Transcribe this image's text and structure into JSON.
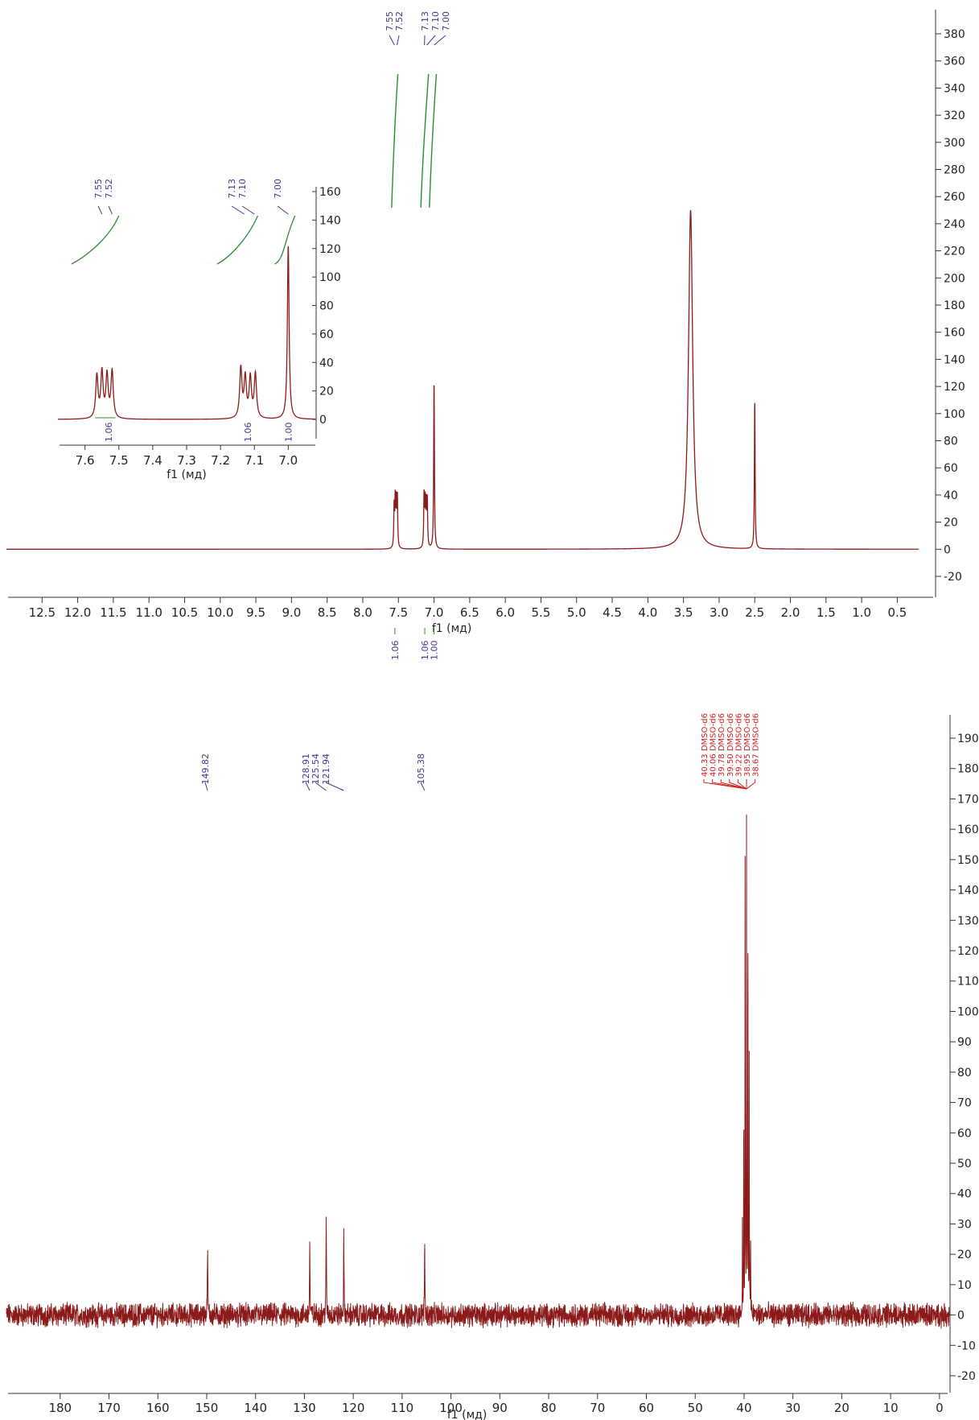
{
  "colors": {
    "spectrum": "#8B1A1A",
    "integral": "#2E8B2E",
    "peak_label": "#3C3C8C",
    "solvent_label": "#D02020",
    "axis": "#333333"
  },
  "chart_data": [
    {
      "type": "line",
      "nucleus": "1H",
      "xlabel": "f1 (мд)",
      "xlim": [
        13.0,
        0.2
      ],
      "xticks": [
        12.5,
        12.0,
        11.5,
        11.0,
        10.5,
        10.0,
        9.5,
        9.0,
        8.5,
        8.0,
        7.5,
        7.0,
        6.5,
        6.0,
        5.5,
        5.0,
        4.5,
        4.0,
        3.5,
        3.0,
        2.5,
        2.0,
        1.5,
        1.0,
        0.5
      ],
      "xtick_labels": [
        "12.5",
        "12.0",
        "11.5",
        "11.0",
        "10.5",
        "10.0",
        "9.5",
        "9.0",
        "8.5",
        "8.0",
        "7.5",
        "7.0",
        "6.5",
        "6.0",
        "5.5",
        "5.0",
        "4.5",
        "4.0",
        "3.5",
        "3.0",
        "2.5",
        "2.0",
        "1.5",
        "1.0",
        "0.5"
      ],
      "ylim": [
        -30,
        390
      ],
      "yticks": [
        -20,
        0,
        20,
        40,
        60,
        80,
        100,
        120,
        140,
        160,
        180,
        200,
        220,
        240,
        260,
        280,
        300,
        320,
        340,
        360,
        380
      ],
      "ytick_labels": [
        "-20",
        "0",
        "20",
        "40",
        "60",
        "80",
        "100",
        "120",
        "140",
        "160",
        "180",
        "200",
        "220",
        "240",
        "260",
        "280",
        "300",
        "320",
        "340",
        "360",
        "380"
      ],
      "peaks": [
        {
          "x": 7.56,
          "y": 30
        },
        {
          "x": 7.545,
          "y": 34
        },
        {
          "x": 7.53,
          "y": 32
        },
        {
          "x": 7.515,
          "y": 36
        },
        {
          "x": 7.14,
          "y": 38
        },
        {
          "x": 7.125,
          "y": 32
        },
        {
          "x": 7.11,
          "y": 30
        },
        {
          "x": 7.095,
          "y": 34
        },
        {
          "x": 7.0,
          "y": 125
        },
        {
          "x": 3.4,
          "y": 250
        },
        {
          "x": 2.5,
          "y": 110
        }
      ],
      "peak_labels": [
        "7.55",
        "7.52",
        "7.13",
        "7.10",
        "7.00"
      ],
      "integrals": [
        {
          "from": 7.58,
          "to": 7.49,
          "value": "1.06"
        },
        {
          "from": 7.16,
          "to": 7.07,
          "value": "1.06"
        },
        {
          "from": 7.03,
          "to": 6.97,
          "value": "1.00"
        }
      ],
      "inset": {
        "xlabel": "f1 (мд)",
        "xlim": [
          7.68,
          6.92
        ],
        "xticks": [
          7.6,
          7.5,
          7.4,
          7.3,
          7.2,
          7.1,
          7.0
        ],
        "xtick_labels": [
          "7.6",
          "7.5",
          "7.4",
          "7.3",
          "7.2",
          "7.1",
          "7.0"
        ],
        "ylim": [
          -15,
          165
        ],
        "yticks": [
          0,
          20,
          40,
          60,
          80,
          100,
          120,
          140,
          160
        ],
        "ytick_labels": [
          "0",
          "20",
          "40",
          "60",
          "80",
          "100",
          "120",
          "140",
          "160"
        ],
        "peak_labels": [
          "7.55",
          "7.52",
          "7.13",
          "7.10",
          "7.00"
        ],
        "integral_values": [
          "1.06",
          "1.06",
          "1.00"
        ]
      }
    },
    {
      "type": "line",
      "nucleus": "13C",
      "xlabel": "f1 (мд)",
      "xlim": [
        191,
        -2
      ],
      "xticks": [
        180,
        170,
        160,
        150,
        140,
        130,
        120,
        110,
        100,
        90,
        80,
        70,
        60,
        50,
        40,
        30,
        20,
        10,
        0
      ],
      "xtick_labels": [
        "180",
        "170",
        "160",
        "150",
        "140",
        "130",
        "120",
        "110",
        "100",
        "90",
        "80",
        "70",
        "60",
        "50",
        "40",
        "30",
        "20",
        "10",
        "0"
      ],
      "ylim": [
        -25,
        197
      ],
      "yticks": [
        -20,
        -10,
        0,
        10,
        20,
        30,
        40,
        50,
        60,
        70,
        80,
        90,
        100,
        110,
        120,
        130,
        140,
        150,
        160,
        170,
        180,
        190
      ],
      "ytick_labels": [
        "-20",
        "-10",
        "0",
        "10",
        "20",
        "30",
        "40",
        "50",
        "60",
        "70",
        "80",
        "90",
        "100",
        "110",
        "120",
        "130",
        "140",
        "150",
        "160",
        "170",
        "180",
        "190"
      ],
      "peaks": [
        {
          "x": 149.82,
          "y": 25
        },
        {
          "x": 128.91,
          "y": 25
        },
        {
          "x": 125.54,
          "y": 34
        },
        {
          "x": 121.94,
          "y": 27
        },
        {
          "x": 105.38,
          "y": 27
        }
      ],
      "peak_labels": [
        "149.82",
        "128.91",
        "125.54",
        "121.94",
        "105.38"
      ],
      "solvent_peaks": [
        {
          "x": 40.33,
          "y": 28
        },
        {
          "x": 40.06,
          "y": 85
        },
        {
          "x": 39.78,
          "y": 160
        },
        {
          "x": 39.5,
          "y": 165
        },
        {
          "x": 39.22,
          "y": 160
        },
        {
          "x": 38.95,
          "y": 85
        },
        {
          "x": 38.67,
          "y": 28
        }
      ],
      "solvent_labels": [
        "40.33 DMSO-d6",
        "40.06 DMSO-d6",
        "39.78 DMSO-d6",
        "39.50 DMSO-d6",
        "39.22 DMSO-d6",
        "38.95 DMSO-d6",
        "38.67 DMSO-d6"
      ],
      "noise_amplitude": 3
    }
  ]
}
